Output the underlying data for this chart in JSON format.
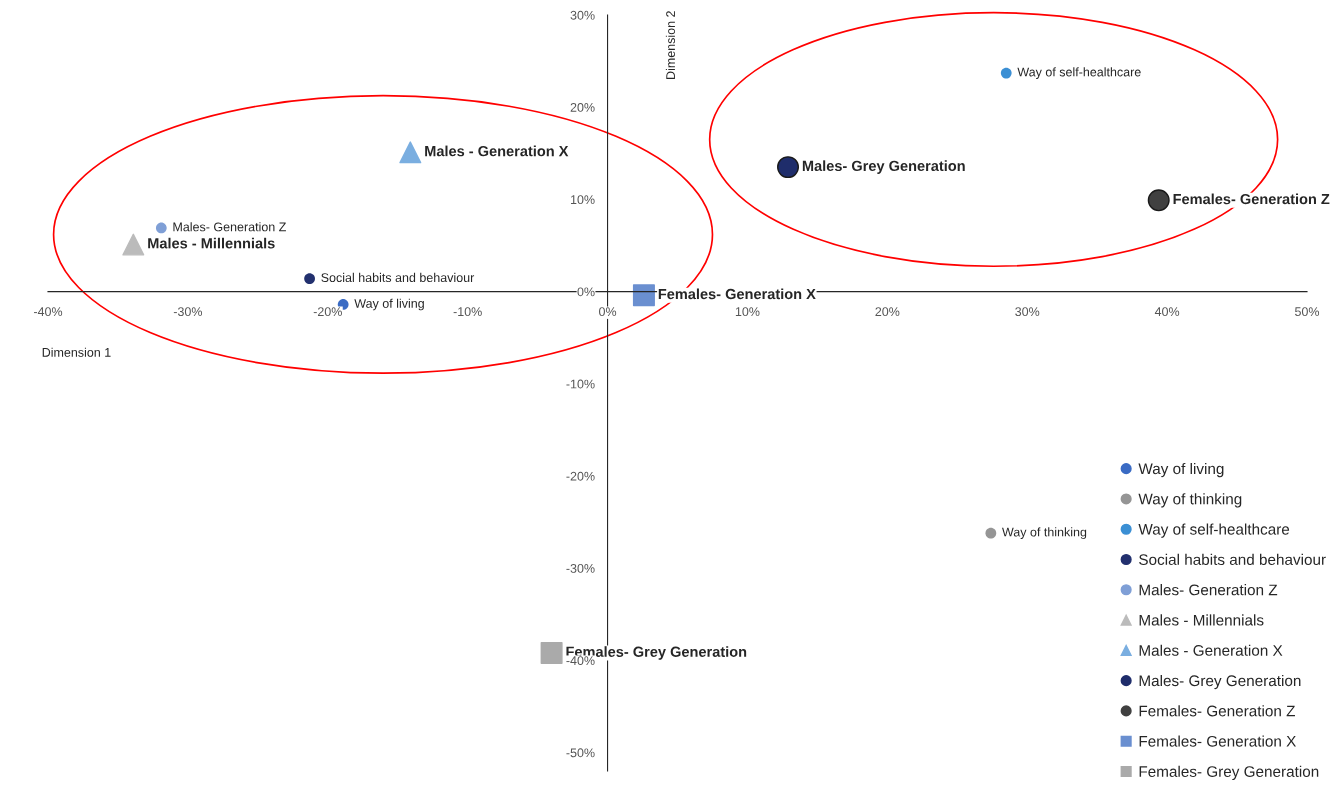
{
  "chart_data": {
    "type": "scatter",
    "xlabel": "Dimension 1",
    "ylabel": "Dimension 2",
    "xlim": [
      -40,
      50
    ],
    "ylim": [
      -52,
      30
    ],
    "xticks": [
      {
        "value": -40,
        "label": "-40%"
      },
      {
        "value": -30,
        "label": "-30%"
      },
      {
        "value": -20,
        "label": "-20%"
      },
      {
        "value": -10,
        "label": "-10%"
      },
      {
        "value": 0,
        "label": "0%"
      },
      {
        "value": 10,
        "label": "10%"
      },
      {
        "value": 20,
        "label": "20%"
      },
      {
        "value": 30,
        "label": "30%"
      },
      {
        "value": 40,
        "label": "40%"
      },
      {
        "value": 50,
        "label": "50%"
      }
    ],
    "yticks": [
      {
        "value": -50,
        "label": "-50%"
      },
      {
        "value": -40,
        "label": "-40%"
      },
      {
        "value": -30,
        "label": "-30%"
      },
      {
        "value": -20,
        "label": "-20%"
      },
      {
        "value": -10,
        "label": "-10%"
      },
      {
        "value": 0,
        "label": "0%"
      },
      {
        "value": 10,
        "label": "10%"
      },
      {
        "value": 20,
        "label": "20%"
      },
      {
        "value": 30,
        "label": "30%"
      }
    ],
    "legend": "bottom right",
    "grid": false,
    "series": [
      {
        "name": "Way of living",
        "color": "#3a6bc4",
        "marker": "circle",
        "x": [
          -18.9
        ],
        "values": [
          -1.4
        ]
      },
      {
        "name": "Way of thinking",
        "color": "#959595",
        "marker": "circle",
        "x": [
          27.4
        ],
        "values": [
          -26.2
        ]
      },
      {
        "name": "Way of self-healthcare",
        "color": "#3b8fd4",
        "marker": "circle",
        "x": [
          28.5
        ],
        "values": [
          23.7
        ]
      },
      {
        "name": "Social habits and behaviour",
        "color": "#22306e",
        "marker": "circle",
        "x": [
          -21.3
        ],
        "values": [
          1.4
        ]
      },
      {
        "name": "Males- Generation Z",
        "color": "#7f9fd6",
        "marker": "circle",
        "x": [
          -31.9
        ],
        "values": [
          6.9
        ]
      },
      {
        "name": "Males - Millennials",
        "color": "#bbbbbb",
        "marker": "triangle",
        "x": [
          -33.9
        ],
        "values": [
          5.1
        ]
      },
      {
        "name": "Males - Generation X",
        "color": "#7aaee0",
        "marker": "triangle",
        "x": [
          -14.1
        ],
        "values": [
          15.1
        ]
      },
      {
        "name": "Males- Grey Generation",
        "color": "#1f2d6b",
        "marker": "circle",
        "x": [
          12.9
        ],
        "values": [
          13.5
        ]
      },
      {
        "name": "Females- Generation Z",
        "color": "#404040",
        "marker": "circle",
        "x": [
          39.4
        ],
        "values": [
          9.9
        ]
      },
      {
        "name": "Females- Generation X",
        "color": "#6a8fd0",
        "marker": "square",
        "x": [
          2.6
        ],
        "values": [
          -0.4
        ]
      },
      {
        "name": "Females- Grey Generation",
        "color": "#aaaaaa",
        "marker": "square",
        "x": [
          -4.0
        ],
        "values": [
          -39.2
        ]
      }
    ]
  }
}
